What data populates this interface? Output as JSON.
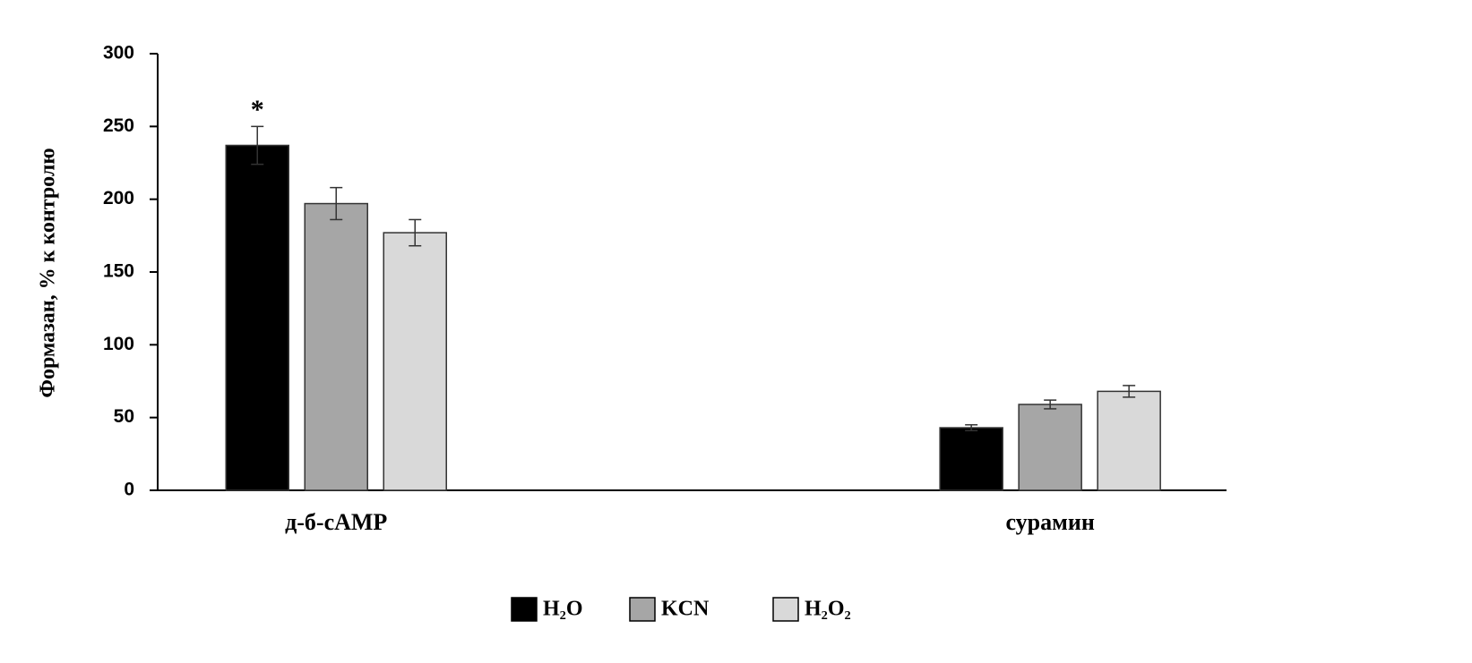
{
  "chart_data": {
    "type": "bar",
    "y_label": "Формазан, % к контролю",
    "categories": [
      "д-б-cAMP",
      "сурамин"
    ],
    "series": [
      {
        "name": "H₂O",
        "color": "#000000",
        "values": [
          237,
          43
        ],
        "errors": [
          13,
          2
        ]
      },
      {
        "name": "KCN",
        "color": "#a6a6a6",
        "values": [
          197,
          59
        ],
        "errors": [
          11,
          3
        ]
      },
      {
        "name": "H₂O₂",
        "color": "#d9d9d9",
        "values": [
          177,
          68
        ],
        "errors": [
          9,
          4
        ]
      }
    ],
    "annotations": [
      "*"
    ],
    "ylim": [
      0,
      300
    ],
    "yticks": [
      0,
      50,
      100,
      150,
      200,
      250,
      300
    ],
    "legend": "bottom"
  }
}
